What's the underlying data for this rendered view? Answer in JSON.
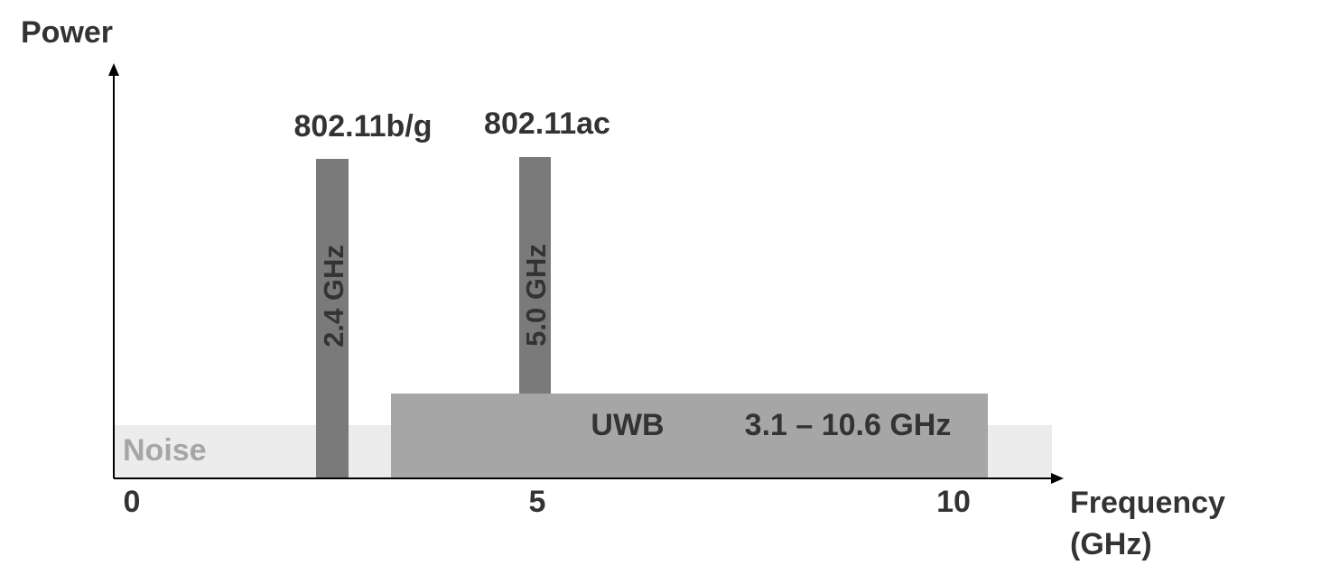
{
  "labels": {
    "y_axis": "Power",
    "x_axis_line1": "Frequency",
    "x_axis_line2": "(GHz)",
    "noise": "Noise",
    "band_24_name": "802.11b/g",
    "band_24_freq": "2.4 GHz",
    "band_50_name": "802.11ac",
    "band_50_freq": "5.0 GHz",
    "uwb_name": "UWB",
    "uwb_range": "3.1 – 10.6 GHz"
  },
  "ticks": [
    "0",
    "5",
    "10"
  ],
  "colors": {
    "narrowband": "#7a7a7a",
    "uwb": "#a6a6a6",
    "noise": "#ececec",
    "noise_text": "#a6a6a6",
    "text": "#333333",
    "axis": "#000000"
  }
}
